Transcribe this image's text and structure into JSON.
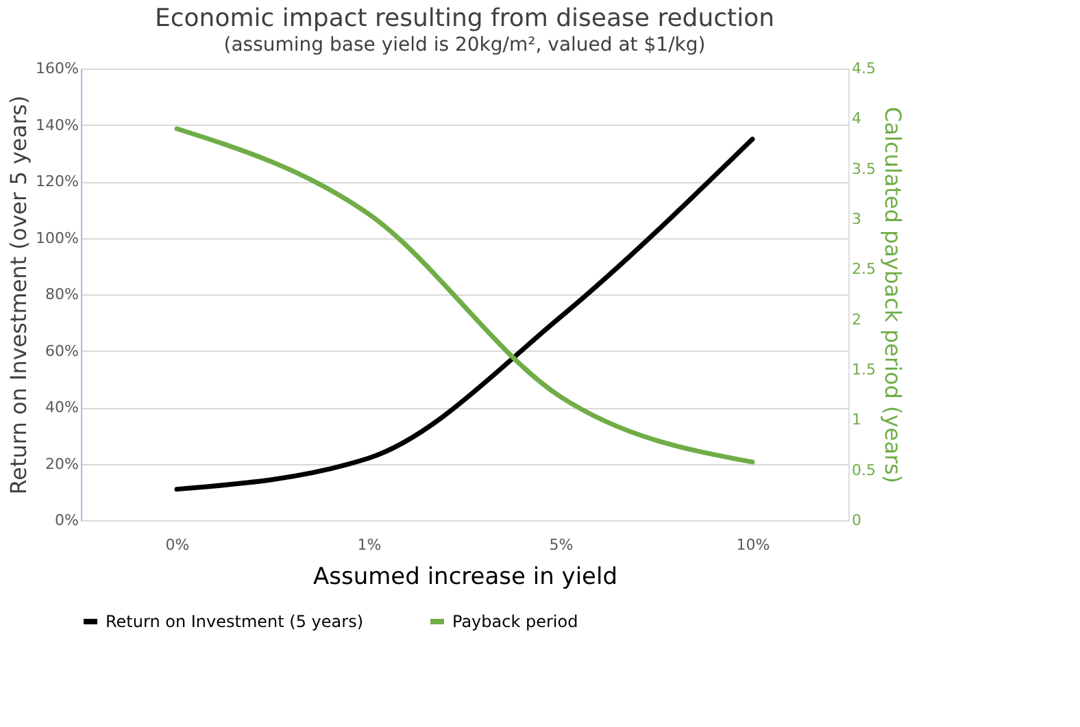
{
  "chart_data": {
    "type": "line",
    "title": "Economic impact resulting from disease reduction",
    "subtitle": "(assuming base yield is 20kg/m², valued at $1/kg)",
    "xlabel": "Assumed increase in yield",
    "ylabel": "Return on Investment (over 5 years)",
    "y2label": "Calculated payback period (years)",
    "categories": [
      "0%",
      "1%",
      "5%",
      "10%"
    ],
    "series": [
      {
        "name": "Return on Investment (5 years)",
        "color": "#000000",
        "values": [
          0.11,
          0.22,
          0.72,
          1.35
        ]
      },
      {
        "name": "Payback period",
        "color": "#70ad47",
        "axis": "y2",
        "values": [
          3.9,
          3.05,
          1.23,
          0.58
        ]
      }
    ],
    "ylim": [
      0,
      1.6
    ],
    "yticks": [
      {
        "value": 0,
        "label": "0%"
      },
      {
        "value": 0.2,
        "label": "20%"
      },
      {
        "value": 0.4,
        "label": "40%"
      },
      {
        "value": 0.6,
        "label": "60%"
      },
      {
        "value": 0.8,
        "label": "80%"
      },
      {
        "value": 1.0,
        "label": "100%"
      },
      {
        "value": 1.2,
        "label": "120%"
      },
      {
        "value": 1.4,
        "label": "140%"
      },
      {
        "value": 1.6,
        "label": "160%"
      }
    ],
    "y2lim": [
      0,
      4.5
    ],
    "y2ticks": [
      0,
      0.5,
      1,
      1.5,
      2,
      2.5,
      3,
      3.5,
      4,
      4.5
    ],
    "grid": "y",
    "legend": "bottom",
    "marker": "none",
    "line_style": "solid"
  }
}
